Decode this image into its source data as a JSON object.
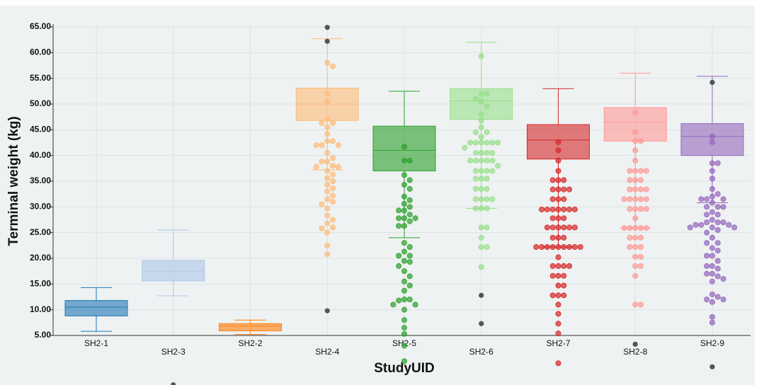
{
  "chart_data": {
    "type": "box",
    "x_label": "StudyUID",
    "y_label": "Terminal weight (kg)",
    "ylim": [
      5,
      65
    ],
    "yticks": [
      {
        "value": 5,
        "label": "5.00"
      },
      {
        "value": 10,
        "label": "10.00"
      },
      {
        "value": 15,
        "label": "15.00"
      },
      {
        "value": 20,
        "label": "20.00"
      },
      {
        "value": 25,
        "label": "25.00"
      },
      {
        "value": 30,
        "label": "30.00"
      },
      {
        "value": 35,
        "label": "35.00"
      },
      {
        "value": 40,
        "label": "40.00"
      },
      {
        "value": 45,
        "label": "45.00"
      },
      {
        "value": 50,
        "label": "50.00"
      },
      {
        "value": 55,
        "label": "55.00"
      },
      {
        "value": 60,
        "label": "60.00"
      },
      {
        "value": 65,
        "label": "65.00"
      }
    ],
    "grid": true,
    "outlier_color": "#555555",
    "series": [
      {
        "name": "SH2-1",
        "color": "#1f77b4",
        "whisker_low": 5.8,
        "q1": 8.8,
        "median": 10.5,
        "q3": 11.8,
        "whisker_high": 14.3,
        "points": [],
        "outliers": []
      },
      {
        "name": "SH2-3",
        "color": "#aec7e8",
        "whisker_low": 12.7,
        "q1": 15.6,
        "median": 17.5,
        "q3": 19.6,
        "whisker_high": 25.5,
        "points": [],
        "outliers": [
          -4.6
        ]
      },
      {
        "name": "SH2-2",
        "color": "#ff7f0e",
        "whisker_low": 5.2,
        "q1": 5.9,
        "median": 6.8,
        "q3": 7.3,
        "whisker_high": 8.0,
        "points": [],
        "outliers": []
      },
      {
        "name": "SH2-4",
        "color": "#ffbb78",
        "whisker_low": 37.2,
        "q1": 46.8,
        "median": 50,
        "q3": 53.1,
        "whisker_high": 62.7,
        "points": [
          58,
          57.3,
          52,
          50.5,
          47,
          46.3,
          46.3,
          45.5,
          44.2,
          42.8,
          42.8,
          42,
          42,
          42,
          40.5,
          39.5,
          38.8,
          38.8,
          38,
          37.8,
          37.8,
          37,
          36.3,
          35.6,
          35,
          34.3,
          33.6,
          33,
          32.2,
          31.5,
          31,
          30.5,
          29.7,
          28.3,
          27.5,
          26.8,
          26,
          25.8,
          25,
          22.5,
          20.8
        ],
        "outliers": [
          64.9,
          62.2,
          9.8
        ]
      },
      {
        "name": "SH2-5",
        "color": "#2ca02c",
        "whisker_low": 24,
        "q1": 37,
        "median": 41,
        "q3": 45.7,
        "whisker_high": 52.5,
        "points": [
          41.7,
          39,
          39,
          36.2,
          35.2,
          34.3,
          33.5,
          32,
          31.3,
          30.6,
          30,
          29.3,
          29.3,
          28.5,
          27.8,
          27.8,
          27.8,
          27.2,
          26.3,
          26.3,
          23,
          22.2,
          21.3,
          20.5,
          20.5,
          19.5,
          19.3,
          18.5,
          17.5,
          16.5,
          15.5,
          14.7,
          13.7,
          12,
          12,
          11.8,
          11,
          11,
          10,
          8,
          6.5,
          5.3,
          3,
          0
        ],
        "outliers": []
      },
      {
        "name": "SH2-6",
        "color": "#98df8a",
        "whisker_low": 29.7,
        "q1": 47,
        "median": 50.6,
        "q3": 53,
        "whisker_high": 62,
        "points": [
          59.3,
          52,
          52,
          51,
          50.5,
          49.5,
          48,
          46.8,
          45.5,
          44.5,
          44.5,
          43.6,
          42.5,
          42.5,
          42.5,
          42.5,
          42.5,
          42.5,
          41.5,
          40.5,
          40.5,
          40.5,
          40.5,
          39,
          39,
          39,
          39,
          39,
          38,
          37,
          37,
          37,
          37,
          35.5,
          35.5,
          35.5,
          33.5,
          33.5,
          33.5,
          31.5,
          31.5,
          31.5,
          31.5,
          29.7,
          29.7,
          29.7,
          26,
          26,
          24,
          22.2,
          22.2,
          18.3
        ],
        "outliers": [
          12.8,
          7.3
        ]
      },
      {
        "name": "SH2-7",
        "color": "#d62728",
        "whisker_low": 22.2,
        "q1": 39.3,
        "median": 43,
        "q3": 46,
        "whisker_high": 53,
        "points": [
          42.6,
          41,
          39,
          37,
          35.2,
          35.2,
          35.2,
          33.4,
          33.4,
          33.4,
          33.4,
          31.5,
          31.5,
          31.5,
          29.5,
          29.5,
          29.5,
          29.5,
          29.5,
          29.5,
          29.5,
          27.8,
          27.8,
          27.8,
          26,
          26,
          26,
          26,
          26,
          26,
          24,
          24,
          24,
          22.2,
          22.2,
          22.2,
          22.2,
          22.2,
          22.2,
          22.2,
          22.2,
          22.2,
          20.2,
          18.5,
          18.5,
          18.5,
          18.5,
          16.6,
          16.6,
          16.6,
          14.7,
          14.7,
          12.8,
          12.8,
          12.8,
          11,
          9.2,
          7.3,
          5.4,
          -0.4
        ],
        "outliers": []
      },
      {
        "name": "SH2-8",
        "color": "#ff9896",
        "whisker_low": 25.9,
        "q1": 42.8,
        "median": 46.5,
        "q3": 49.3,
        "whisker_high": 56,
        "points": [
          48.3,
          44.5,
          42.8,
          42.8,
          41,
          39,
          37,
          37,
          37,
          37,
          35.2,
          35.2,
          35.2,
          33.4,
          33.4,
          33.4,
          33.4,
          31.5,
          31.5,
          31.5,
          31.5,
          31.5,
          29.6,
          29.6,
          29.6,
          29.6,
          27.8,
          25.9,
          25.9,
          25.9,
          25.9,
          25.9,
          24,
          24,
          24,
          22.2,
          22.2,
          22.2,
          20.3,
          20.3,
          18.5,
          18.5,
          16.6,
          11,
          11
        ],
        "outliers": [
          3.3
        ]
      },
      {
        "name": "SH2-9",
        "color": "#9467bd",
        "whisker_low": 30.8,
        "q1": 40,
        "median": 43.7,
        "q3": 46.2,
        "whisker_high": 55.4,
        "points": [
          43.7,
          42.6,
          38.5,
          38.5,
          37,
          35.5,
          33.5,
          32.5,
          32,
          31.5,
          31.5,
          31.5,
          30.8,
          30,
          30,
          30,
          29,
          28.5,
          28.5,
          27.5,
          27,
          27,
          27,
          26.5,
          26.5,
          26.5,
          26,
          26,
          26,
          25.5,
          25,
          24,
          23,
          23,
          22,
          21.5,
          20.5,
          20.5,
          19.5,
          18.5,
          18.5,
          18,
          17,
          17,
          16.5,
          16,
          15.5,
          13,
          12.5,
          12,
          12,
          11.5,
          8.6,
          7.5
        ],
        "outliers": [
          54.2,
          -1.1
        ]
      }
    ]
  }
}
